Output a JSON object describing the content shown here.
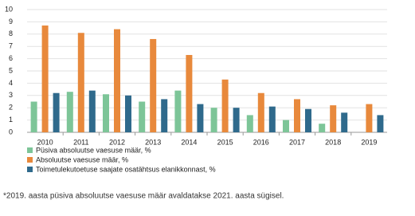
{
  "chart_data": {
    "type": "bar",
    "categories": [
      "2010",
      "2011",
      "2012",
      "2013",
      "2014",
      "2015",
      "2016",
      "2017",
      "2018",
      "2019"
    ],
    "series": [
      {
        "name": "Püsiva absoluutse vaesuse määr, %",
        "color": "#7dc598",
        "values": [
          2.5,
          3.3,
          3.1,
          2.5,
          3.4,
          2.0,
          1.4,
          1.0,
          0.7,
          null
        ]
      },
      {
        "name": "Absoluutse vaesuse määr, %",
        "color": "#e8893c",
        "values": [
          8.7,
          8.1,
          8.4,
          7.6,
          6.3,
          4.3,
          3.2,
          2.7,
          2.2,
          2.3
        ]
      },
      {
        "name": "Toimetulekutoetuse saajate osatähtsus elanikkonnast, %",
        "color": "#2f6a8c",
        "values": [
          3.2,
          3.4,
          3.0,
          2.7,
          2.3,
          2.0,
          2.1,
          1.9,
          1.6,
          1.4
        ]
      }
    ],
    "ylim": [
      0,
      10
    ],
    "yticks": [
      0,
      1,
      2,
      3,
      4,
      5,
      6,
      7,
      8,
      9,
      10
    ],
    "grid": true,
    "footnote": "*2019. aasta püsiva absoluutse vaesuse määr avaldatakse 2021. aasta sügisel."
  }
}
